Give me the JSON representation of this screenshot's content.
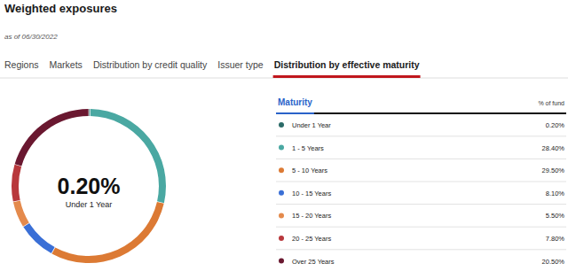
{
  "tabs": {
    "items": [
      "Regions",
      "Markets",
      "Distribution by credit quality",
      "Issuer type",
      "Distribution by effective maturity"
    ],
    "active": "Distribution by effective maturity"
  },
  "chart_data": {
    "type": "donut",
    "title": "Weighted exposures",
    "subtitle": "as of 06/30/2022",
    "columns": [
      "Maturity",
      "% of fund"
    ],
    "categories": [
      "Under 1 Year",
      "1 - 5 Years",
      "5 - 10 Years",
      "10 - 15 Years",
      "15 - 20 Years",
      "20 - 25 Years",
      "Over 25 Years"
    ],
    "values": [
      0.2,
      28.4,
      29.5,
      8.1,
      5.5,
      7.8,
      20.5
    ],
    "value_labels": [
      "0.20%",
      "28.40%",
      "29.50%",
      "8.10%",
      "5.50%",
      "7.80%",
      "20.50%"
    ],
    "colors": [
      "#2b6b68",
      "#4aa8a2",
      "#dc7a34",
      "#3a6fd6",
      "#e48a4c",
      "#b8383c",
      "#6a1830"
    ],
    "legend": "right"
  }
}
